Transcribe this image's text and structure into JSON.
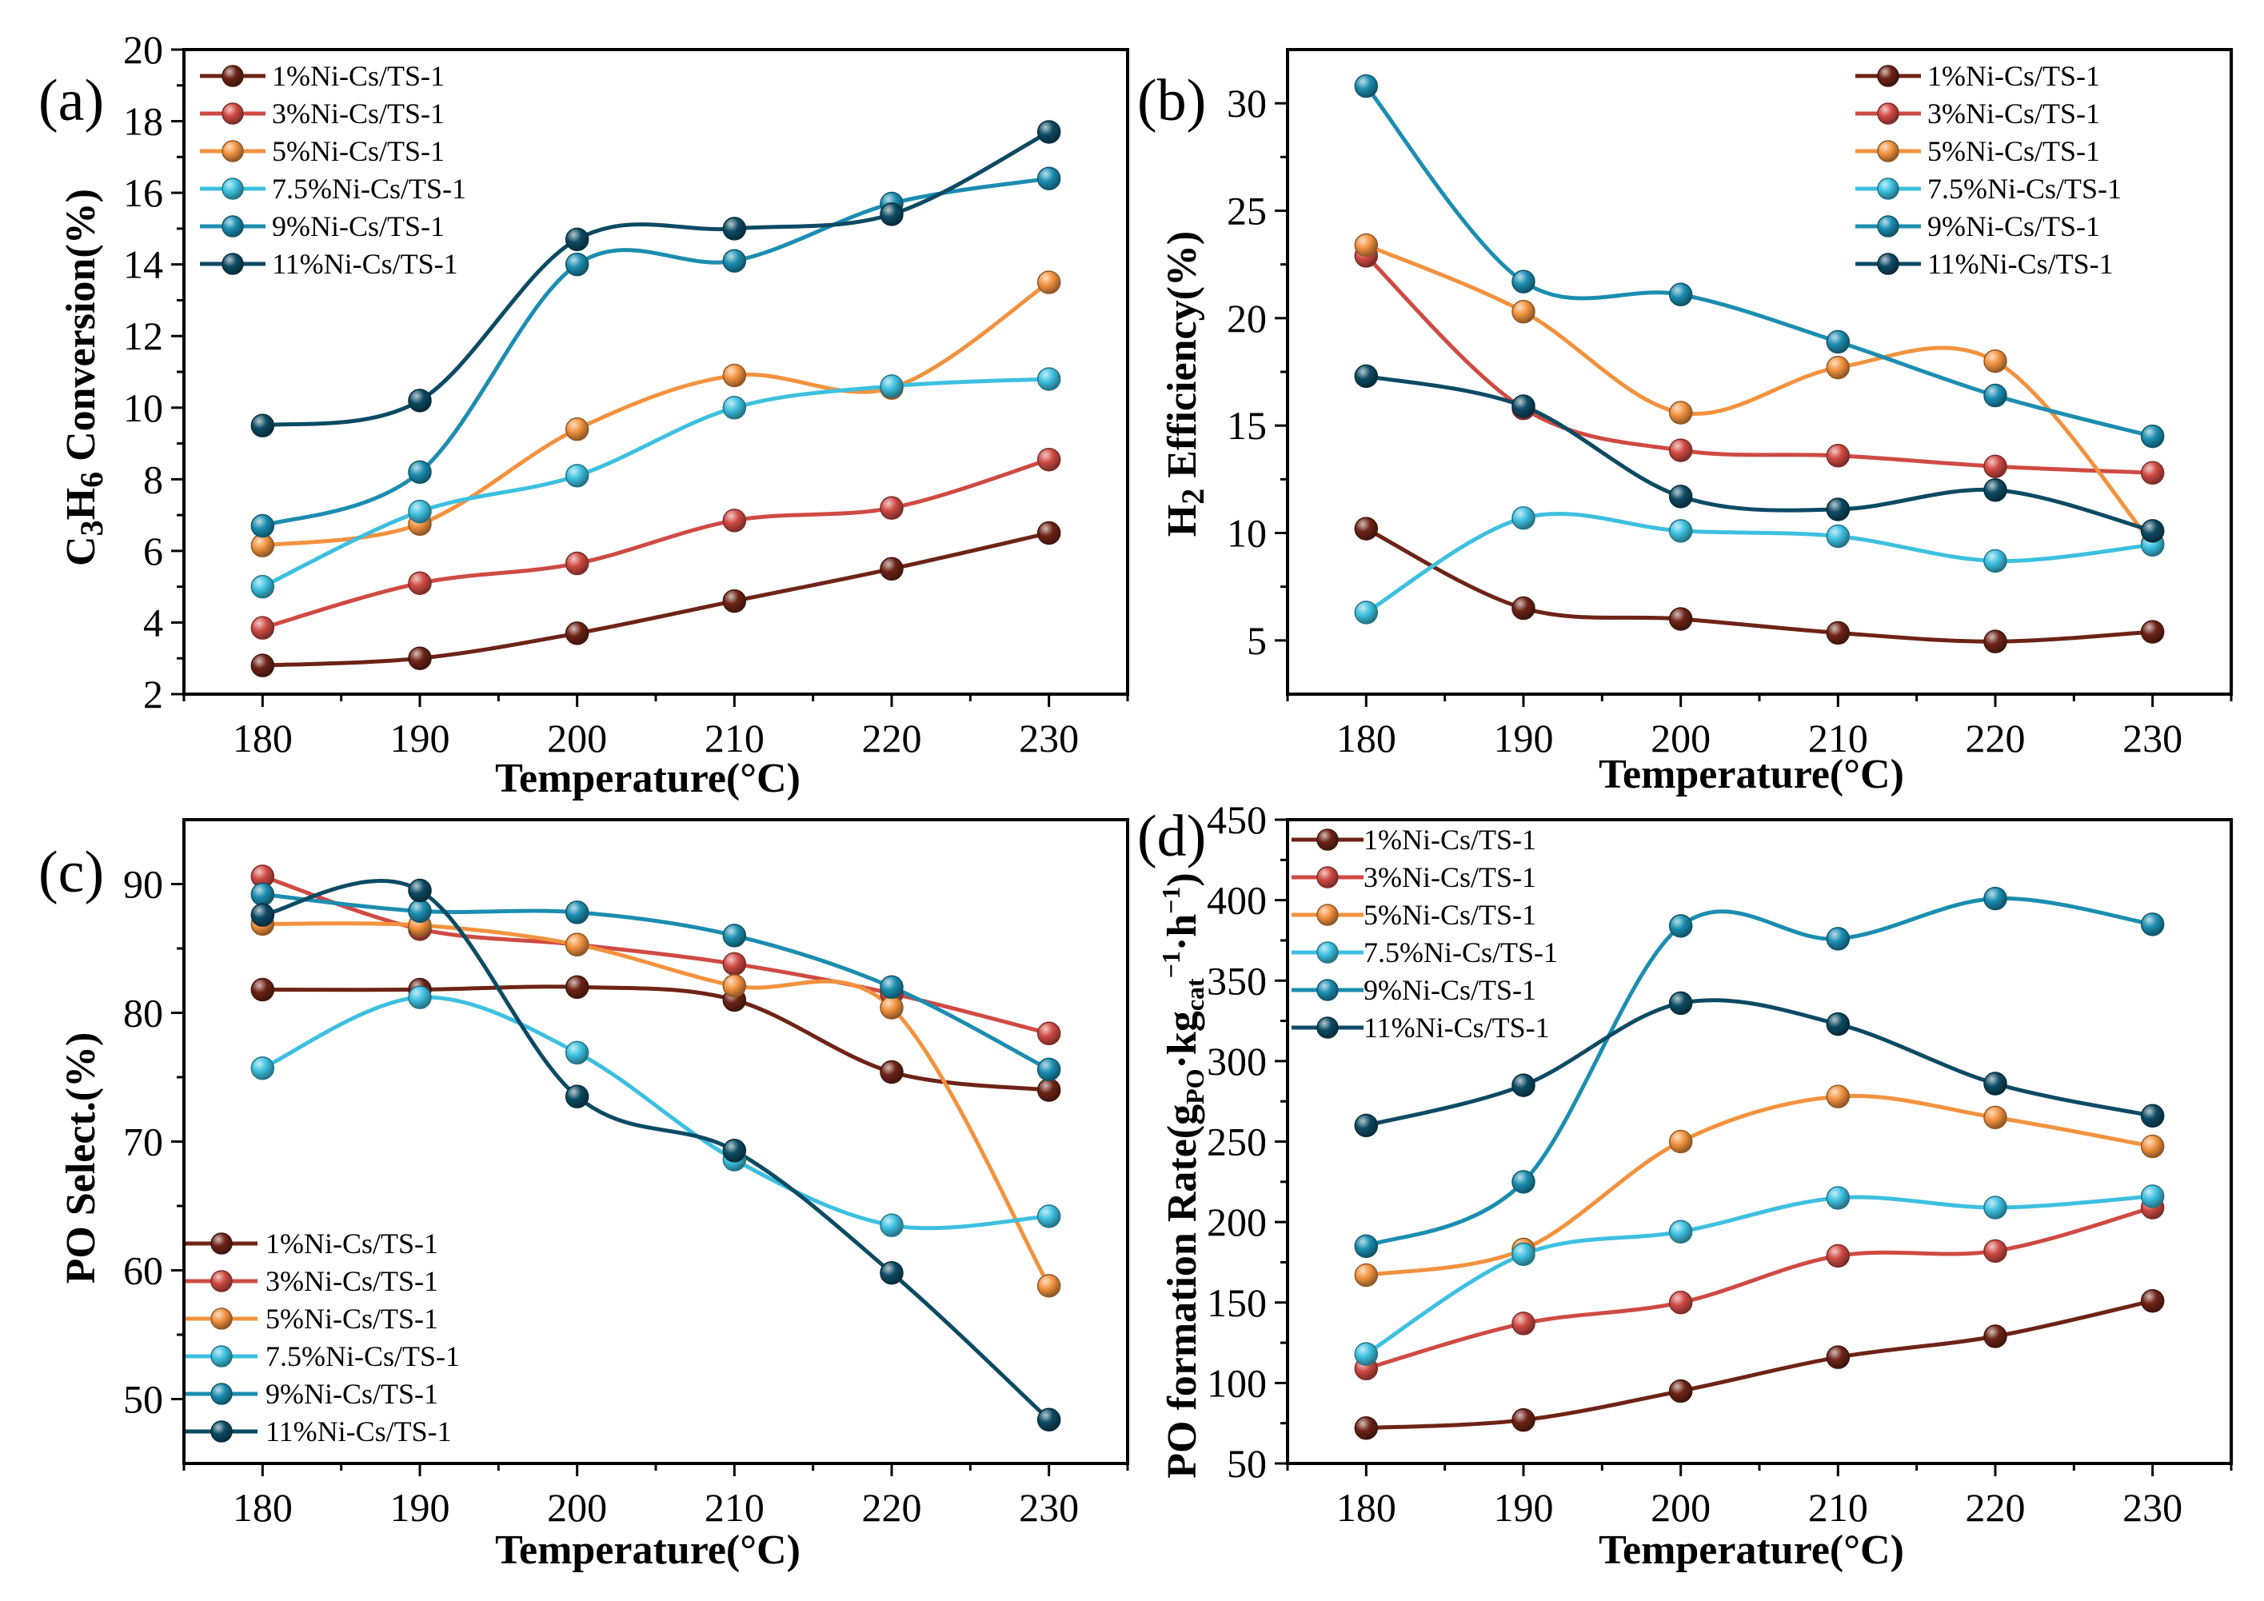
{
  "colors": {
    "1%Ni-Cs/TS-1": "#6d2316",
    "3%Ni-Cs/TS-1": "#cf4a43",
    "5%Ni-Cs/TS-1": "#f2923e",
    "7.5%Ni-Cs/TS-1": "#3dc0e0",
    "9%Ni-Cs/TS-1": "#1b8db0",
    "11%Ni-Cs/TS-1": "#0c4a63"
  },
  "chart_data": [
    {
      "type": "line",
      "label": "(a)",
      "title": "",
      "xlabel": "Temperature(°C)",
      "ylabel": "C3H6 Conversion(%)",
      "ylabel_parts": {
        "a": "C",
        "b": "3",
        "c": "H",
        "d": "6",
        "e": " Conversion(%)"
      },
      "x": [
        180,
        190,
        200,
        210,
        220,
        230
      ],
      "xlim": [
        175,
        235
      ],
      "ylim": [
        2,
        20
      ],
      "xticks": [
        180,
        190,
        200,
        210,
        220,
        230
      ],
      "yticks": [
        2,
        4,
        6,
        8,
        10,
        12,
        14,
        16,
        18,
        20
      ],
      "legend_position": "top-left",
      "series": [
        {
          "name": "1%Ni-Cs/TS-1",
          "values": [
            2.8,
            3.0,
            3.7,
            4.6,
            5.5,
            6.5
          ]
        },
        {
          "name": "3%Ni-Cs/TS-1",
          "values": [
            3.85,
            5.1,
            5.65,
            6.85,
            7.2,
            8.55
          ]
        },
        {
          "name": "5%Ni-Cs/TS-1",
          "values": [
            6.15,
            6.75,
            9.4,
            10.9,
            10.55,
            13.5
          ]
        },
        {
          "name": "7.5%Ni-Cs/TS-1",
          "values": [
            5.0,
            7.1,
            8.1,
            10.0,
            10.6,
            10.8
          ]
        },
        {
          "name": "9%Ni-Cs/TS-1",
          "values": [
            6.7,
            8.2,
            14.0,
            14.1,
            15.7,
            16.4
          ]
        },
        {
          "name": "11%Ni-Cs/TS-1",
          "values": [
            9.5,
            10.2,
            14.7,
            15.0,
            15.4,
            17.7
          ]
        }
      ]
    },
    {
      "type": "line",
      "label": "(b)",
      "title": "",
      "xlabel": "Temperature(°C)",
      "ylabel": "H2 Efficiency(%)",
      "ylabel_parts": {
        "a": "H",
        "b": "2",
        "c": " Efficiency(%)"
      },
      "x": [
        180,
        190,
        200,
        210,
        220,
        230
      ],
      "xlim": [
        175,
        235
      ],
      "ylim": [
        2.5,
        32.5
      ],
      "xticks": [
        180,
        190,
        200,
        210,
        220,
        230
      ],
      "yticks": [
        5,
        10,
        15,
        20,
        25,
        30
      ],
      "legend_position": "top-right",
      "series": [
        {
          "name": "1%Ni-Cs/TS-1",
          "values": [
            10.2,
            6.5,
            6.0,
            5.35,
            4.95,
            5.4
          ]
        },
        {
          "name": "3%Ni-Cs/TS-1",
          "values": [
            22.9,
            15.8,
            13.85,
            13.6,
            13.1,
            12.8
          ]
        },
        {
          "name": "5%Ni-Cs/TS-1",
          "values": [
            23.4,
            20.3,
            15.6,
            17.7,
            18.0,
            9.5
          ]
        },
        {
          "name": "7.5%Ni-Cs/TS-1",
          "values": [
            6.3,
            10.7,
            10.1,
            9.85,
            8.7,
            9.45
          ]
        },
        {
          "name": "9%Ni-Cs/TS-1",
          "values": [
            30.8,
            21.7,
            21.1,
            18.9,
            16.4,
            14.5
          ]
        },
        {
          "name": "11%Ni-Cs/TS-1",
          "values": [
            17.3,
            15.9,
            11.7,
            11.1,
            12.0,
            10.1
          ]
        }
      ]
    },
    {
      "type": "line",
      "label": "(c)",
      "title": "",
      "xlabel": "Temperature(°C)",
      "ylabel": "PO Select.(%)",
      "x": [
        180,
        190,
        200,
        210,
        220,
        230
      ],
      "xlim": [
        175,
        235
      ],
      "ylim": [
        45,
        95
      ],
      "xticks": [
        180,
        190,
        200,
        210,
        220,
        230
      ],
      "yticks": [
        50,
        60,
        70,
        80,
        90
      ],
      "legend_position": "bottom-left",
      "series": [
        {
          "name": "1%Ni-Cs/TS-1",
          "values": [
            81.8,
            81.8,
            82.0,
            81.0,
            75.4,
            74.0
          ]
        },
        {
          "name": "3%Ni-Cs/TS-1",
          "values": [
            90.6,
            86.5,
            85.3,
            83.8,
            81.5,
            78.4
          ]
        },
        {
          "name": "5%Ni-Cs/TS-1",
          "values": [
            86.9,
            86.8,
            85.3,
            82.1,
            80.4,
            58.8
          ]
        },
        {
          "name": "7.5%Ni-Cs/TS-1",
          "values": [
            75.7,
            81.2,
            76.9,
            68.6,
            63.5,
            64.2
          ]
        },
        {
          "name": "9%Ni-Cs/TS-1",
          "values": [
            89.2,
            87.9,
            87.8,
            86.0,
            82.0,
            75.6
          ]
        },
        {
          "name": "11%Ni-Cs/TS-1",
          "values": [
            87.6,
            89.5,
            73.5,
            69.3,
            59.8,
            48.4
          ]
        }
      ]
    },
    {
      "type": "line",
      "label": "(d)",
      "title": "",
      "xlabel": "Temperature(°C)",
      "ylabel": "PO formation Rate(gPO·kgcat−1·h−1)",
      "ylabel_parts": {
        "a": "PO formation Rate(g",
        "b": "PO",
        "c": "·kg",
        "d": "cat",
        "e": "−1",
        "f": "·h",
        "g": "−1",
        "h": ")"
      },
      "x": [
        180,
        190,
        200,
        210,
        220,
        230
      ],
      "xlim": [
        175,
        235
      ],
      "ylim": [
        50,
        450
      ],
      "xticks": [
        180,
        190,
        200,
        210,
        220,
        230
      ],
      "yticks": [
        50,
        100,
        150,
        200,
        250,
        300,
        350,
        400,
        450
      ],
      "legend_position": "top-left",
      "series": [
        {
          "name": "1%Ni-Cs/TS-1",
          "values": [
            72,
            77,
            95,
            116,
            129,
            151
          ]
        },
        {
          "name": "3%Ni-Cs/TS-1",
          "values": [
            109,
            137,
            150,
            179,
            182,
            209
          ]
        },
        {
          "name": "5%Ni-Cs/TS-1",
          "values": [
            167,
            183,
            250,
            278,
            265,
            247
          ]
        },
        {
          "name": "7.5%Ni-Cs/TS-1",
          "values": [
            118,
            180,
            194,
            215,
            209,
            216
          ]
        },
        {
          "name": "9%Ni-Cs/TS-1",
          "values": [
            185,
            225,
            384,
            376,
            401,
            385
          ]
        },
        {
          "name": "11%Ni-Cs/TS-1",
          "values": [
            260,
            285,
            336,
            323,
            286,
            266
          ]
        }
      ]
    }
  ]
}
